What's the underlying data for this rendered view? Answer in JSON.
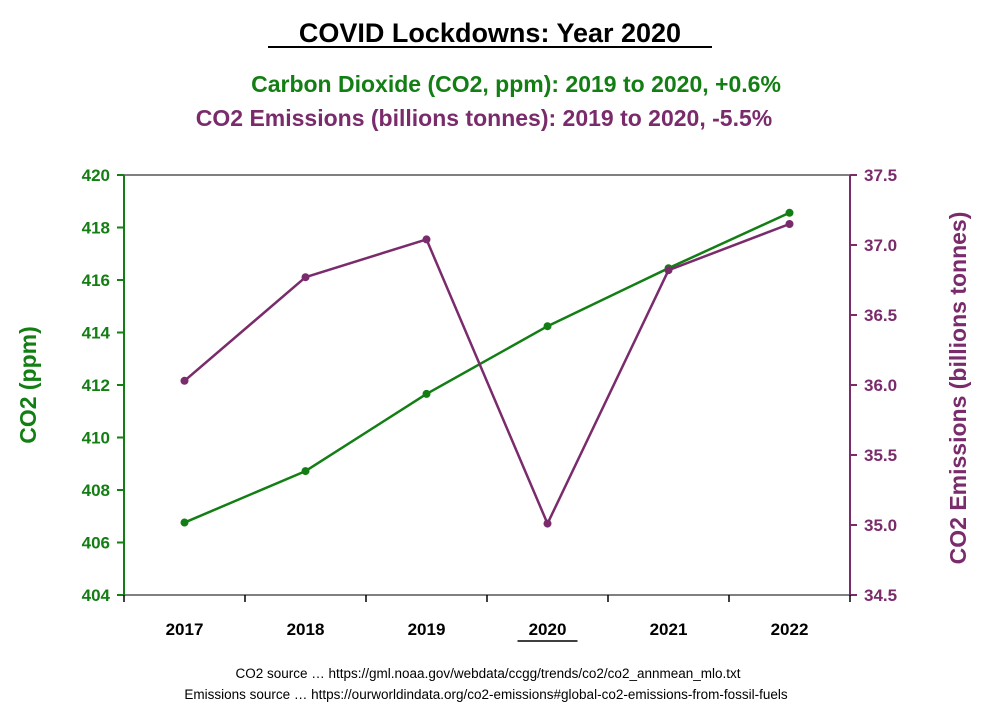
{
  "chart_data": {
    "type": "line",
    "title": "COVID Lockdowns: Year 2020",
    "subtitles": [
      {
        "text": "Carbon Dioxide (CO2, ppm): 2019 to 2020, +0.6%",
        "color": "#137e13"
      },
      {
        "text": "CO2 Emissions (billions tonnes): 2019 to 2020, -5.5%",
        "color": "#7a2b6b"
      }
    ],
    "categories": [
      "2017",
      "2018",
      "2019",
      "2020",
      "2021",
      "2022"
    ],
    "highlighted_category": "2020",
    "y_left": {
      "label": "CO2 (ppm)",
      "ylim": [
        404,
        420
      ],
      "ticks": [
        "404",
        "406",
        "408",
        "410",
        "412",
        "414",
        "416",
        "418",
        "420"
      ],
      "color": "#137e13"
    },
    "y_right": {
      "label": "CO2 Emissions (billions tonnes)",
      "ylim": [
        34.5,
        37.5
      ],
      "ticks": [
        "34.5",
        "35.0",
        "35.5",
        "36.0",
        "36.5",
        "37.0",
        "37.5"
      ],
      "color": "#7a2b6b"
    },
    "series": [
      {
        "axis": "left",
        "color": "#137e13",
        "values": [
          406.76,
          408.72,
          411.66,
          414.24,
          416.45,
          418.56
        ]
      },
      {
        "axis": "right",
        "color": "#7a2b6b",
        "values": [
          36.03,
          36.77,
          37.04,
          35.01,
          36.82,
          37.15
        ]
      }
    ],
    "grid": false,
    "sources": [
      "CO2 source … https://gml.noaa.gov/webdata/ccgg/trends/co2/co2_annmean_mlo.txt",
      "Emissions source … https://ourworldindata.org/co2-emissions#global-co2-emissions-from-fossil-fuels"
    ]
  }
}
